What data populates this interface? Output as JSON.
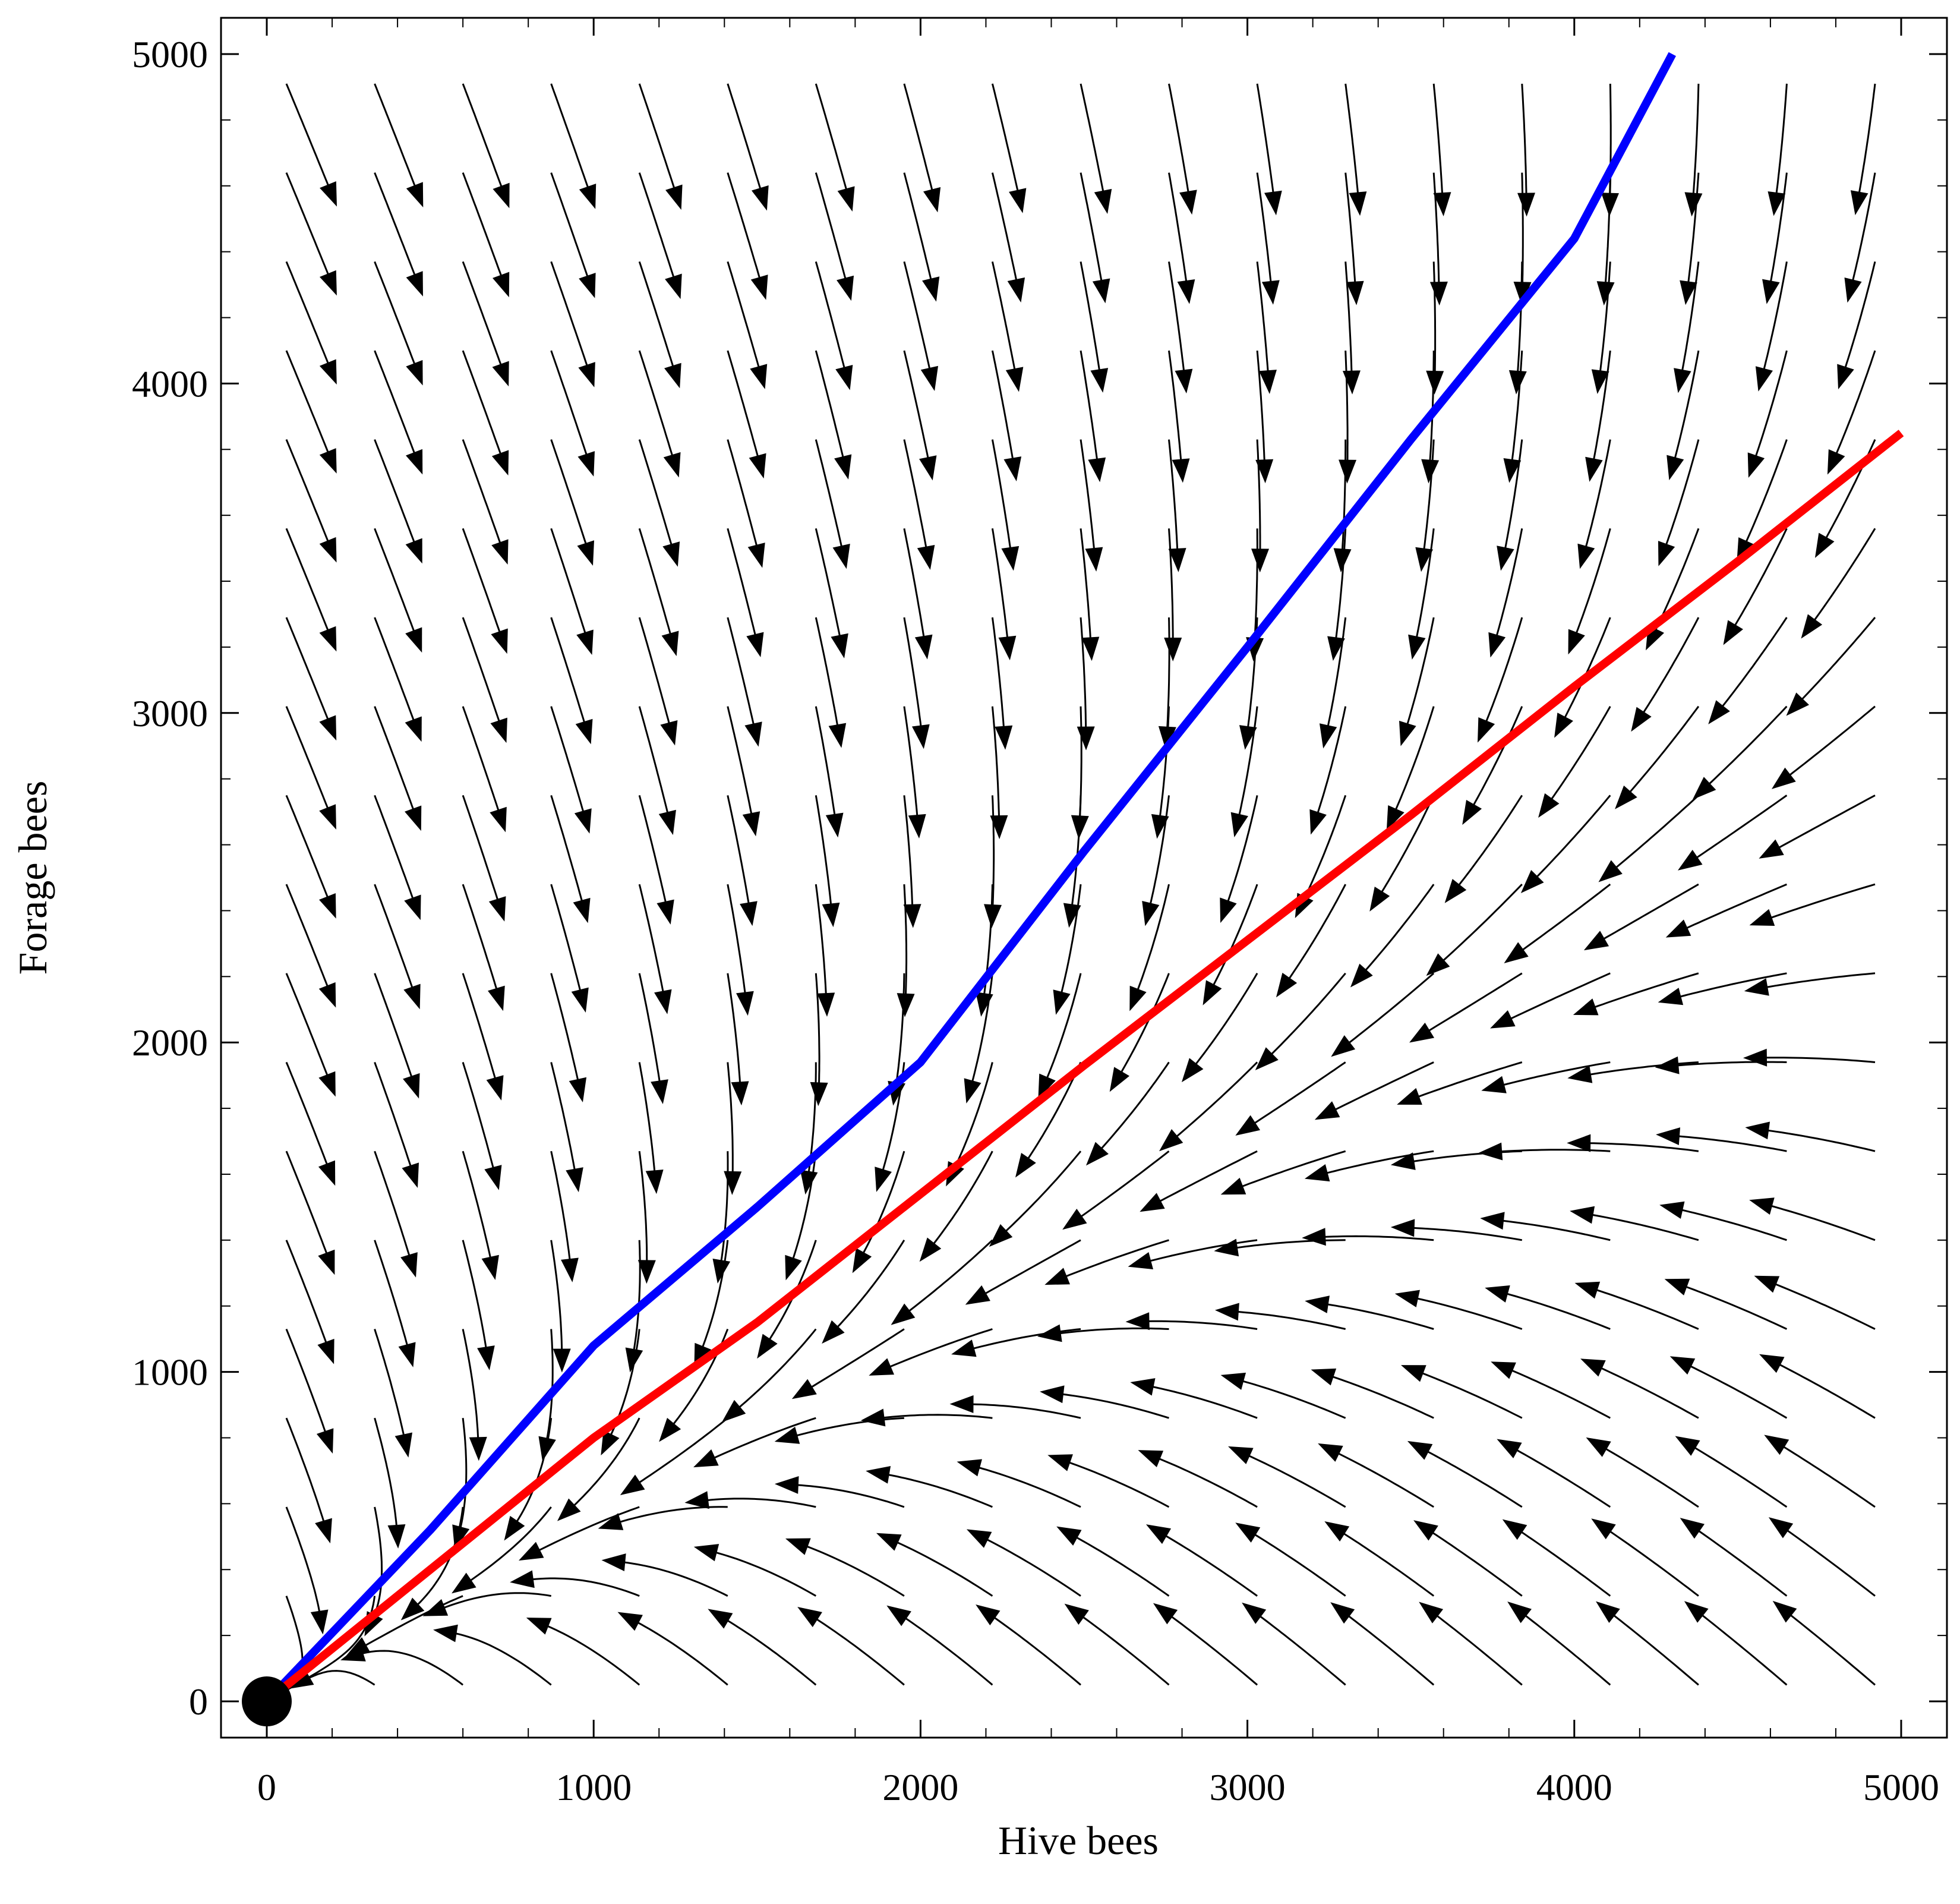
{
  "chart_data": {
    "type": "streamplot",
    "title": "",
    "xlabel": "Hive bees",
    "ylabel": "Forage bees",
    "xlim": [
      -140,
      5140
    ],
    "ylim": [
      -110,
      5110
    ],
    "xticks": [
      0,
      1000,
      2000,
      3000,
      4000,
      5000
    ],
    "yticks": [
      0,
      1000,
      2000,
      3000,
      4000,
      5000
    ],
    "xtick_labels": [
      "0",
      "1000",
      "2000",
      "3000",
      "4000",
      "5000"
    ],
    "ytick_labels": [
      "0",
      "1000",
      "2000",
      "3000",
      "4000",
      "5000"
    ],
    "grid": false,
    "stream_color": "#000000",
    "fixed_point": {
      "x": 0,
      "y": 0
    },
    "fixed_point_color": "#000000",
    "separatrix_slope": 0.6,
    "series": [
      {
        "color": "#0000ff",
        "x": [
          0,
          500,
          1000,
          1500,
          2000,
          2500,
          3000,
          3500,
          4000,
          4300
        ],
        "y": [
          0,
          520,
          1080,
          1500,
          1940,
          2580,
          3200,
          3830,
          4440,
          5000
        ]
      },
      {
        "color": "#ff0000",
        "x": [
          0,
          500,
          1000,
          1500,
          2000,
          2500,
          3000,
          3500,
          4000,
          4500,
          5000
        ],
        "y": [
          0,
          400,
          800,
          1150,
          1540,
          1930,
          2310,
          2690,
          3080,
          3460,
          3850
        ]
      }
    ]
  }
}
